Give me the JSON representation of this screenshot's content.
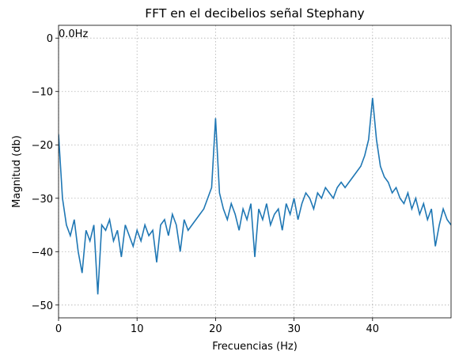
{
  "chart_data": {
    "type": "line",
    "title": "FFT en el decibelios señal Stephany",
    "xlabel": "Frecuencias (Hz)",
    "ylabel": "Magnitud (db)",
    "annotations": [
      {
        "text": "0.0Hz",
        "x": 0,
        "y": 0
      }
    ],
    "x": [
      0,
      0.5,
      1,
      1.5,
      2,
      2.5,
      3,
      3.5,
      4,
      4.5,
      5,
      5.5,
      6,
      6.5,
      7,
      7.5,
      8,
      8.5,
      9,
      9.5,
      10,
      10.5,
      11,
      11.5,
      12,
      12.5,
      13,
      13.5,
      14,
      14.5,
      15,
      15.5,
      16,
      16.5,
      17,
      17.5,
      18,
      18.5,
      19,
      19.5,
      20,
      20.5,
      21,
      21.5,
      22,
      22.5,
      23,
      23.5,
      24,
      24.5,
      25,
      25.5,
      26,
      26.5,
      27,
      27.5,
      28,
      28.5,
      29,
      29.5,
      30,
      30.5,
      31,
      31.5,
      32,
      32.5,
      33,
      33.5,
      34,
      34.5,
      35,
      35.5,
      36,
      36.5,
      37,
      37.5,
      38,
      38.5,
      39,
      39.5,
      40,
      40.5,
      41,
      41.5,
      42,
      42.5,
      43,
      43.5,
      44,
      44.5,
      45,
      45.5,
      46,
      46.5,
      47,
      47.5,
      48,
      48.5,
      49,
      49.5,
      50
    ],
    "series": [
      {
        "color": "#1f77b4",
        "values": [
          -18,
          -30,
          -35,
          -37,
          -34,
          -40,
          -44,
          -36,
          -38,
          -35,
          -48,
          -35,
          -36,
          -34,
          -38,
          -36,
          -41,
          -35,
          -37,
          -39,
          -36,
          -38,
          -35,
          -37,
          -36,
          -42,
          -35,
          -34,
          -37,
          -33,
          -35,
          -40,
          -34,
          -36,
          -35,
          -34,
          -33,
          -32,
          -30,
          -28,
          -15,
          -29,
          -32,
          -34,
          -31,
          -33,
          -36,
          -32,
          -34,
          -31,
          -41,
          -32,
          -34,
          -31,
          -35,
          -33,
          -32,
          -36,
          -31,
          -33,
          -30,
          -34,
          -31,
          -29,
          -30,
          -32,
          -29,
          -30,
          -28,
          -29,
          -30,
          -28,
          -27,
          -28,
          -27,
          -26,
          -25,
          -24,
          -22,
          -19,
          -11.2,
          -19,
          -24,
          -26,
          -27,
          -29,
          -28,
          -30,
          -31,
          -29,
          -32,
          -30,
          -33,
          -31,
          -34,
          -32,
          -39,
          -35,
          -32,
          -34,
          -35
        ]
      }
    ],
    "xlim": [
      0,
      50
    ],
    "ylim": [
      -52.4,
      2.4
    ],
    "xticks": [
      0,
      10,
      20,
      30,
      40
    ],
    "yticks": [
      0,
      -10,
      -20,
      -30,
      -40,
      -50
    ],
    "grid": true
  }
}
